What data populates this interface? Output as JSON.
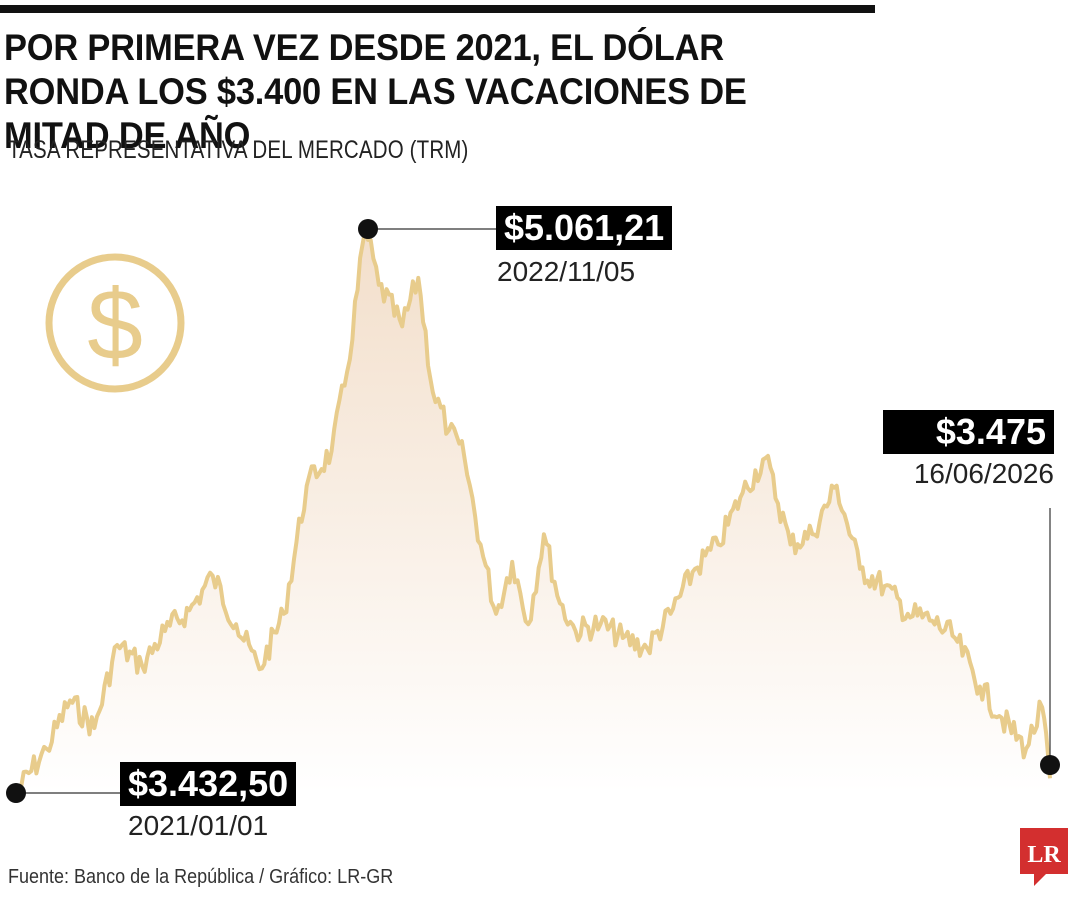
{
  "header": {
    "title": "POR PRIMERA VEZ DESDE 2021, EL DÓLAR RONDA LOS $3.400 EN LAS VACACIONES DE MITAD DE AÑO",
    "subtitle": "TASA REPRESENTATIVA DEL MERCADO (TRM)"
  },
  "annotations": {
    "max_value": "$5.061,21",
    "max_date": "2022/11/05",
    "end_value": "$3.475",
    "end_date": "16/06/2026",
    "start_value": "$3.432,50",
    "start_date": "2021/01/01"
  },
  "footer": {
    "source": "Fuente:  Banco de la República  / Gráfico: LR-GR"
  },
  "logo": {
    "text": "LR"
  },
  "icons": {
    "dollar": "dollar-coin-icon",
    "logo": "lr-logo-icon"
  },
  "colors": {
    "line": "#e8cc8c",
    "area_top": "#f2ddc8",
    "icon": "#e8cc8c",
    "label_bg": "#000000",
    "logo": "#d32f2f"
  },
  "chart_data": {
    "type": "area",
    "title": "TASA REPRESENTATIVA DEL MERCADO (TRM)",
    "xlabel": "",
    "ylabel": "",
    "x_range": [
      "2021-01-01",
      "2026-06-16"
    ],
    "ylim": [
      3200,
      5100
    ],
    "grid": false,
    "legend": "none",
    "series": [
      {
        "x": [
          "2021-01-01",
          "2021-03-01",
          "2021-04-15",
          "2021-06-01",
          "2021-07-15",
          "2021-09-01",
          "2021-10-15",
          "2021-12-01",
          "2022-01-15",
          "2022-03-01",
          "2022-04-15",
          "2022-06-01",
          "2022-07-15",
          "2022-09-01",
          "2022-10-01",
          "2022-11-05",
          "2022-12-01",
          "2023-01-15",
          "2023-02-15",
          "2023-03-15",
          "2023-04-15",
          "2023-05-15",
          "2023-06-15",
          "2023-07-15",
          "2023-08-15",
          "2023-09-15",
          "2023-10-15",
          "2023-11-15",
          "2023-12-15",
          "2024-02-01",
          "2024-03-15",
          "2024-05-01",
          "2024-06-15",
          "2024-08-01",
          "2024-09-15",
          "2024-11-01",
          "2024-12-15",
          "2025-02-01",
          "2025-03-15",
          "2025-05-01",
          "2025-06-15",
          "2025-08-01",
          "2025-09-15",
          "2025-11-01",
          "2025-12-15",
          "2026-02-01",
          "2026-03-15",
          "2026-05-01",
          "2026-06-01",
          "2026-06-16"
        ],
        "y": [
          3432.5,
          3560,
          3700,
          3620,
          3860,
          3800,
          3900,
          3960,
          4060,
          3920,
          3790,
          3950,
          4320,
          4420,
          4650,
          5061.21,
          4900,
          4780,
          4920,
          4590,
          4480,
          4400,
          4150,
          3950,
          4100,
          3920,
          4180,
          3980,
          3900,
          3920,
          3880,
          3850,
          3950,
          4080,
          4150,
          4300,
          4400,
          4150,
          4180,
          4320,
          4080,
          4030,
          3950,
          3930,
          3880,
          3740,
          3650,
          3560,
          3680,
          3475
        ]
      }
    ]
  }
}
